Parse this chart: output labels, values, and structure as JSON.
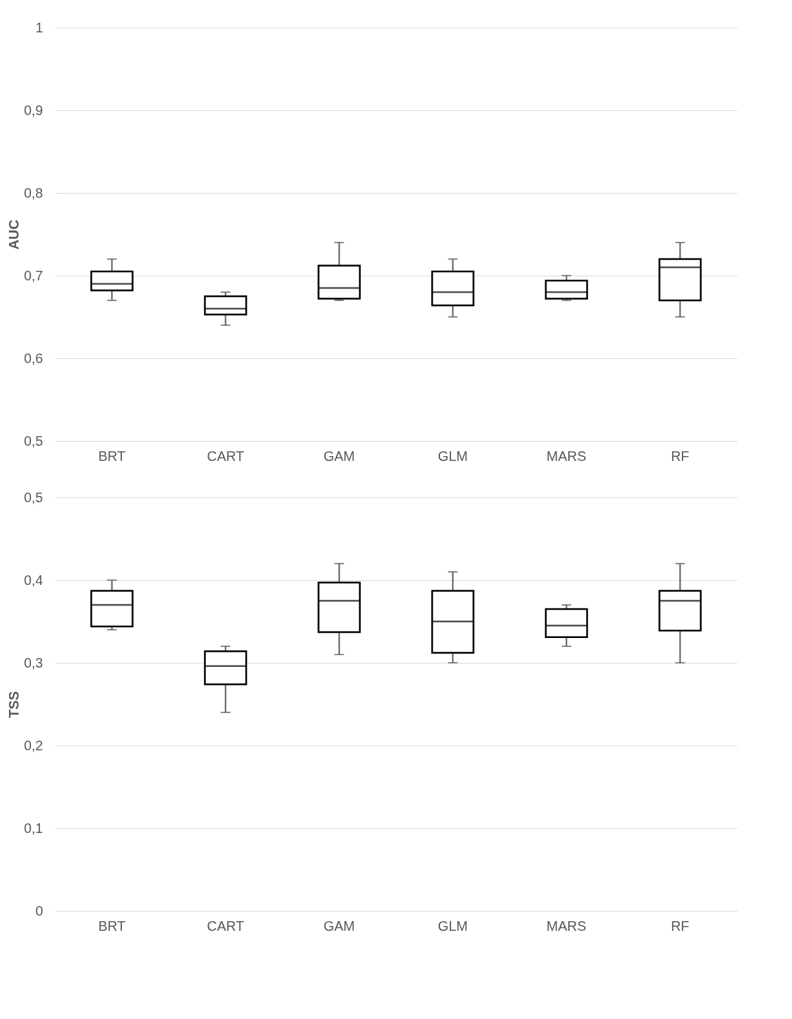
{
  "chart_data": [
    {
      "type": "box",
      "ylabel": "AUC",
      "categories": [
        "BRT",
        "CART",
        "GAM",
        "GLM",
        "MARS",
        "RF"
      ],
      "ylim": [
        0.5,
        1
      ],
      "yticks": [
        {
          "value": 0.5,
          "label": "0,5"
        },
        {
          "value": 0.6,
          "label": "0,6"
        },
        {
          "value": 0.7,
          "label": "0,7"
        },
        {
          "value": 0.8,
          "label": "0,8"
        },
        {
          "value": 0.9,
          "label": "0,9"
        },
        1
      ],
      "grid": "y",
      "boxes": [
        {
          "low": 0.67,
          "q1": 0.682,
          "median": 0.69,
          "q3": 0.705,
          "high": 0.72
        },
        {
          "low": 0.64,
          "q1": 0.653,
          "median": 0.66,
          "q3": 0.675,
          "high": 0.68
        },
        {
          "low": 0.67,
          "q1": 0.672,
          "median": 0.685,
          "q3": 0.712,
          "high": 0.74
        },
        {
          "low": 0.65,
          "q1": 0.664,
          "median": 0.68,
          "q3": 0.705,
          "high": 0.72
        },
        {
          "low": 0.67,
          "q1": 0.672,
          "median": 0.68,
          "q3": 0.694,
          "high": 0.7
        },
        {
          "low": 0.65,
          "q1": 0.67,
          "median": 0.71,
          "q3": 0.72,
          "high": 0.74
        }
      ]
    },
    {
      "type": "box",
      "ylabel": "TSS",
      "categories": [
        "BRT",
        "CART",
        "GAM",
        "GLM",
        "MARS",
        "RF"
      ],
      "ylim": [
        0,
        0.5
      ],
      "yticks": [
        0,
        {
          "value": 0.1,
          "label": "0,1"
        },
        {
          "value": 0.2,
          "label": "0,2"
        },
        {
          "value": 0.3,
          "label": "0,3"
        },
        {
          "value": 0.4,
          "label": "0,4"
        },
        {
          "value": 0.5,
          "label": "0,5"
        }
      ],
      "grid": "y",
      "boxes": [
        {
          "low": 0.34,
          "q1": 0.344,
          "median": 0.37,
          "q3": 0.387,
          "high": 0.4
        },
        {
          "low": 0.24,
          "q1": 0.274,
          "median": 0.296,
          "q3": 0.314,
          "high": 0.32
        },
        {
          "low": 0.31,
          "q1": 0.337,
          "median": 0.375,
          "q3": 0.397,
          "high": 0.42
        },
        {
          "low": 0.3,
          "q1": 0.312,
          "median": 0.35,
          "q3": 0.387,
          "high": 0.41
        },
        {
          "low": 0.32,
          "q1": 0.331,
          "median": 0.345,
          "q3": 0.365,
          "high": 0.37
        },
        {
          "low": 0.3,
          "q1": 0.339,
          "median": 0.375,
          "q3": 0.387,
          "high": 0.42
        }
      ]
    }
  ]
}
